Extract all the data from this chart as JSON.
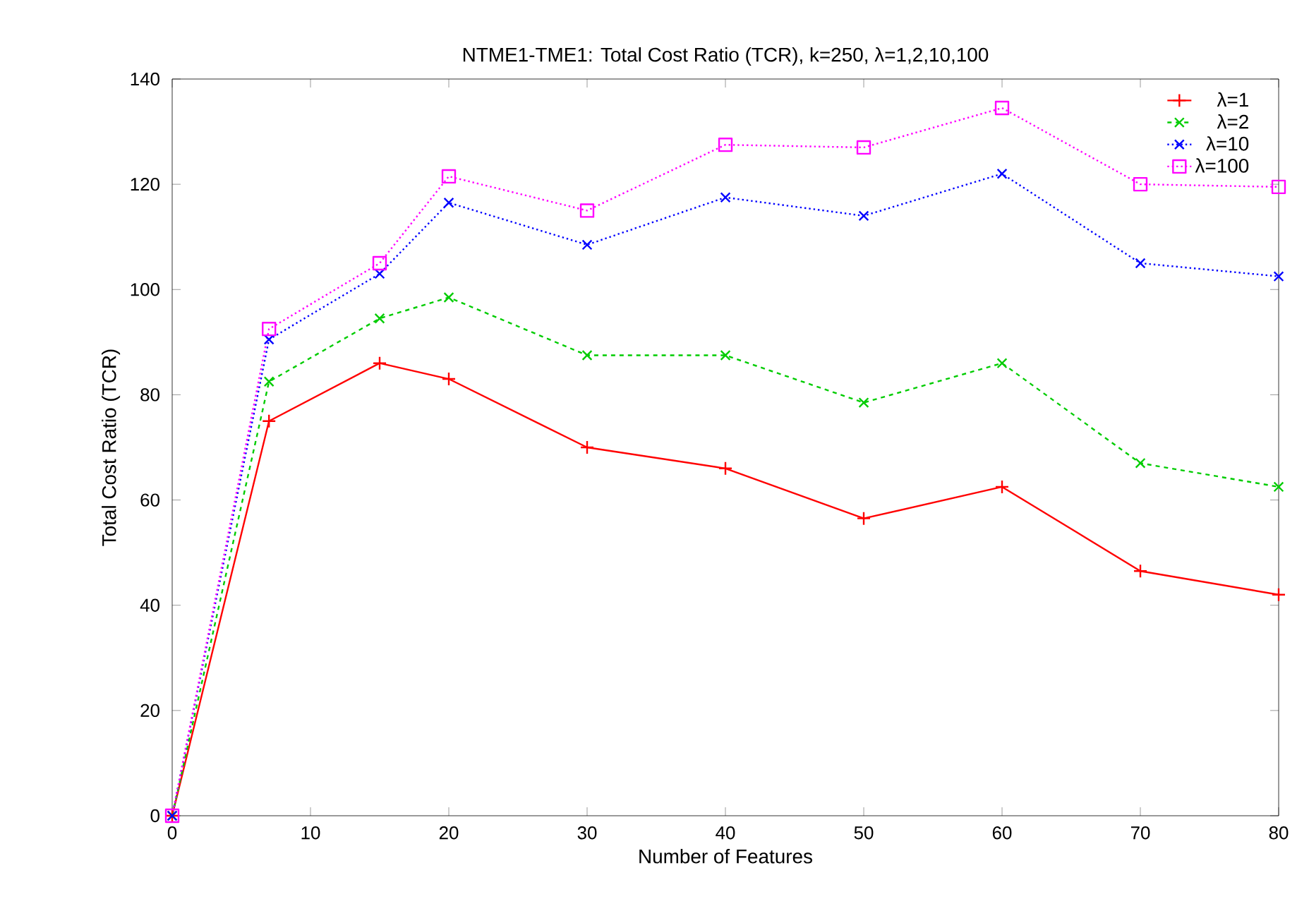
{
  "chart_data": {
    "type": "line",
    "title": "NTME1-TME1: Total Cost Ratio (TCR), k=250, λ=1,2,10,100",
    "xlabel": "Number of Features",
    "ylabel": "Total Cost Ratio (TCR)",
    "x": [
      0,
      7,
      15,
      20,
      30,
      40,
      50,
      60,
      70,
      80
    ],
    "series": [
      {
        "name": "λ=1",
        "color": "#ff0000",
        "marker": "plus",
        "line_style": "solid",
        "values": [
          0,
          75,
          86,
          83,
          70,
          66,
          56.5,
          62.5,
          46.5,
          42
        ]
      },
      {
        "name": "λ=2",
        "color": "#00cc00",
        "marker": "cross",
        "line_style": "dashed",
        "values": [
          0,
          82.5,
          94.5,
          98.5,
          87.5,
          87.5,
          78.5,
          86,
          67,
          62.5
        ]
      },
      {
        "name": "λ=10",
        "color": "#0000ff",
        "marker": "cross",
        "line_style": "dotted",
        "values": [
          0,
          90.5,
          103,
          116.5,
          108.5,
          117.5,
          114,
          122,
          105,
          102.5
        ]
      },
      {
        "name": "λ=100",
        "color": "#ff00ff",
        "marker": "square",
        "line_style": "dotted",
        "values": [
          0,
          92.5,
          105,
          121.5,
          115,
          127.5,
          127,
          134.5,
          120,
          119.5
        ]
      }
    ],
    "xlim": [
      0,
      80
    ],
    "ylim": [
      0,
      140
    ],
    "xticks": [
      0,
      10,
      20,
      30,
      40,
      50,
      60,
      70,
      80
    ],
    "yticks": [
      0,
      20,
      40,
      60,
      80,
      100,
      120,
      140
    ],
    "grid": false,
    "legend": "top right"
  }
}
